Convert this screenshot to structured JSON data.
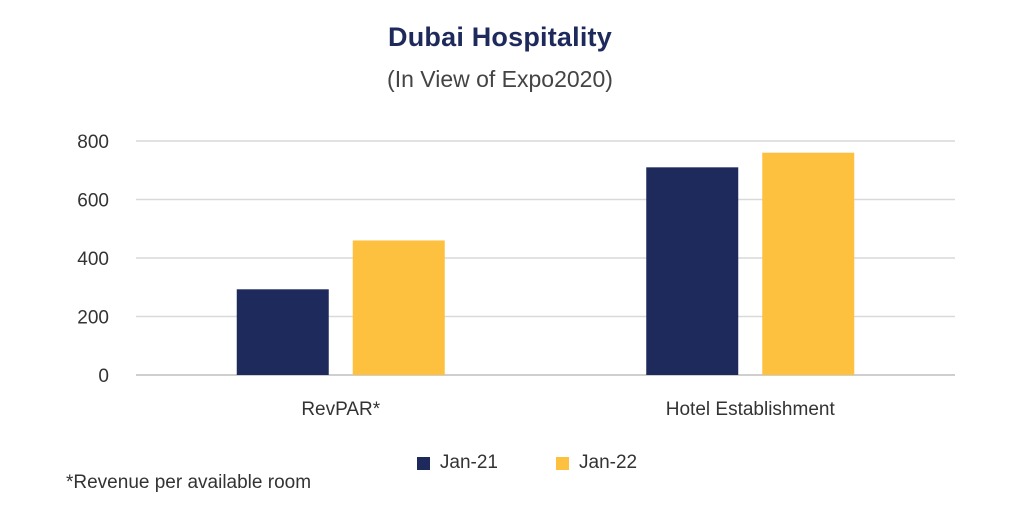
{
  "chart_data": {
    "type": "bar",
    "title": "Dubai Hospitality",
    "subtitle": "(In View of Expo2020)",
    "categories": [
      "RevPAR*",
      "Hotel Establishment"
    ],
    "series": [
      {
        "name": "Jan-21",
        "values": [
          293,
          710
        ],
        "color": "#1f2a5c"
      },
      {
        "name": "Jan-22",
        "values": [
          460,
          760
        ],
        "color": "#fdc13f"
      }
    ],
    "yticks": [
      "0",
      "200",
      "400",
      "600",
      "800"
    ],
    "ylim": [
      0,
      800
    ],
    "grid": true,
    "legend_position": "bottom",
    "footnote": "*Revenue per available room"
  }
}
